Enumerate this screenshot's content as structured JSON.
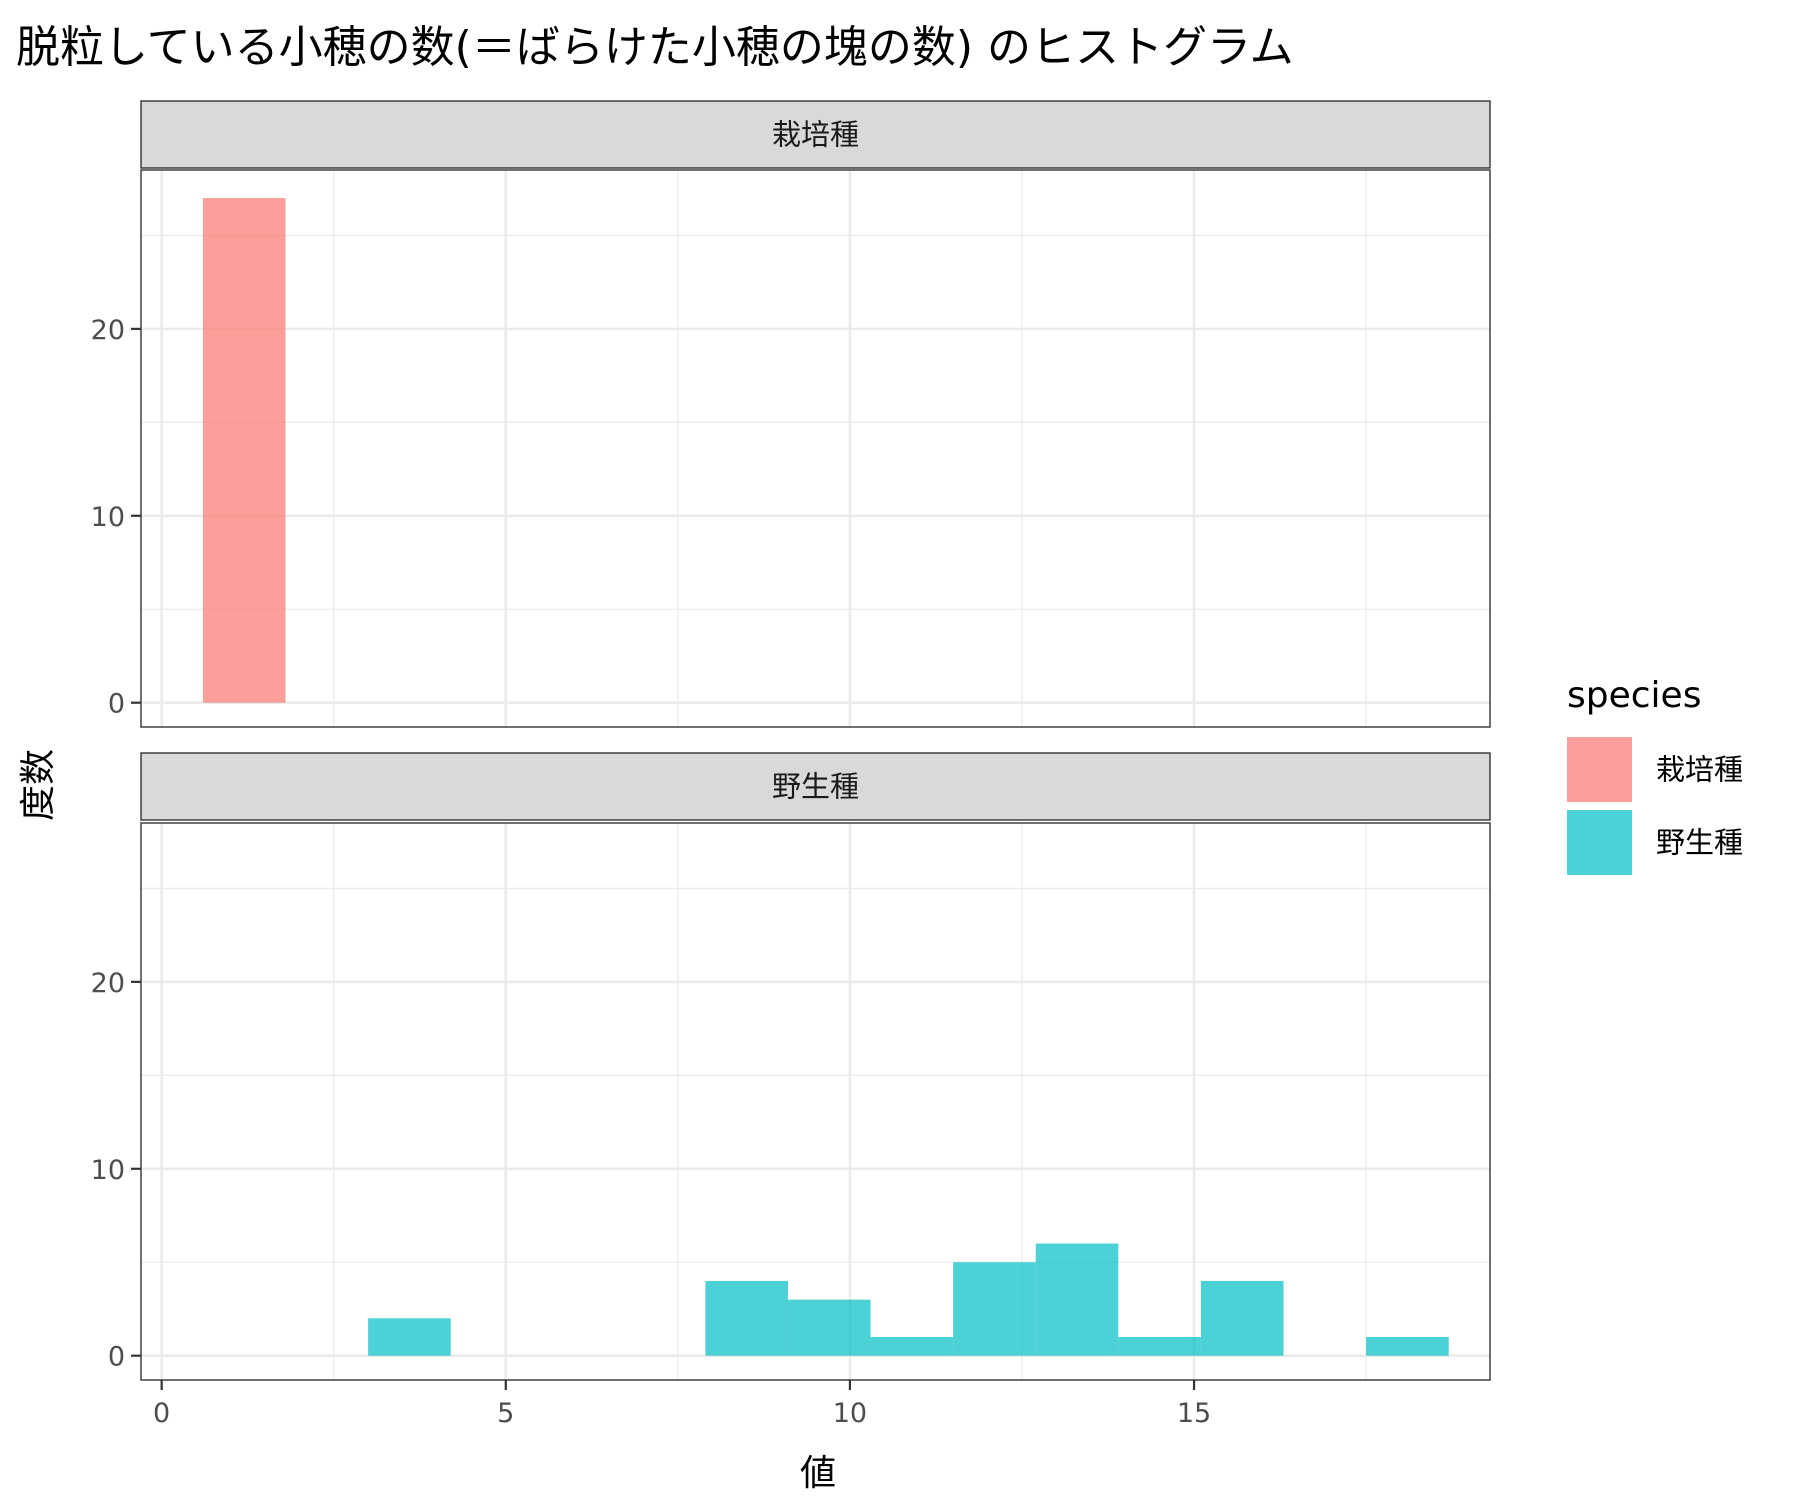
{
  "chart_data": {
    "type": "bar",
    "title": "脱粒している小穂の数(＝ばらけた小穂の塊の数) のヒストグラム",
    "xlabel": "値",
    "ylabel": "度数",
    "xlim": [
      -0.3,
      19.3
    ],
    "ylim": [
      -1.3,
      28.5
    ],
    "x_ticks": [
      0,
      5,
      10,
      15
    ],
    "x_tick_labels": [
      "0",
      "5",
      "10",
      "15"
    ],
    "y_ticks": [
      0,
      10,
      20
    ],
    "y_tick_labels": [
      "0",
      "10",
      "20"
    ],
    "x_minor_ticks": [
      2.5,
      7.5,
      12.5,
      17.5
    ],
    "y_minor_ticks": [
      5,
      15,
      25
    ],
    "grid": true,
    "legend": {
      "title": "species",
      "position": "right",
      "entries": [
        {
          "label": "栽培種",
          "color": "#F8766D"
        },
        {
          "label": "野生種",
          "color": "#00BFC4"
        }
      ]
    },
    "facets": [
      {
        "label": "栽培種",
        "color": "#F8766D",
        "bins": [
          {
            "x0": 0.6,
            "x1": 1.8,
            "count": 27
          }
        ]
      },
      {
        "label": "野生種",
        "color": "#00BFC4",
        "bins": [
          {
            "x0": 3.0,
            "x1": 4.2,
            "count": 2
          },
          {
            "x0": 7.9,
            "x1": 9.1,
            "count": 4
          },
          {
            "x0": 9.1,
            "x1": 10.3,
            "count": 3
          },
          {
            "x0": 10.3,
            "x1": 11.5,
            "count": 1
          },
          {
            "x0": 11.5,
            "x1": 12.7,
            "count": 5
          },
          {
            "x0": 12.7,
            "x1": 13.9,
            "count": 6
          },
          {
            "x0": 13.9,
            "x1": 15.1,
            "count": 1
          },
          {
            "x0": 15.1,
            "x1": 16.3,
            "count": 4
          },
          {
            "x0": 17.5,
            "x1": 18.7,
            "count": 1
          }
        ]
      }
    ]
  }
}
